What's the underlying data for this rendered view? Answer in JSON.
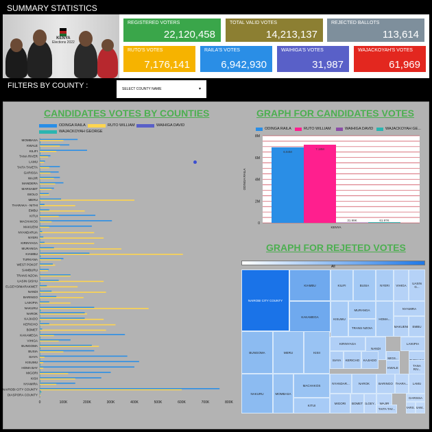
{
  "header": {
    "title": "SUMMARY STATISTICS"
  },
  "banner": {
    "logo_text": "KENYA",
    "logo_sub": "Elections 2022"
  },
  "kpis": [
    {
      "label": "REGISTERED VOTERS",
      "value": "22,120,458",
      "color": "#3aa64a"
    },
    {
      "label": "TOTAL VALID VOTES",
      "value": "14,213,137",
      "color": "#8c7f32"
    },
    {
      "label": "REJECTED BALLOTS",
      "value": "113,614",
      "color": "#7e8f9c"
    },
    {
      "label": "RUTO'S VOTES",
      "value": "7,176,141",
      "color": "#f6b300"
    },
    {
      "label": "RAILA'S VOTES",
      "value": "6,942,930",
      "color": "#2a8ee6"
    },
    {
      "label": "WAIHIGA'S VOTES",
      "value": "31,987",
      "color": "#5960c8"
    },
    {
      "label": "WAJACKOYAH'S VOTES",
      "value": "61,969",
      "color": "#e3271f"
    }
  ],
  "filters": {
    "label": "FILTERS BY COUNTY :",
    "select_value": "SELECT COUNTY NAME",
    "caret": "▾"
  },
  "county_chart": {
    "title": "CANDIDATES VOTES BY COUNTIES",
    "legend": [
      {
        "name": "ODINGA RAILA",
        "color": "#2a8ee6"
      },
      {
        "name": "RUTO WILLIAM",
        "color": "#ffd54f"
      },
      {
        "name": "WAIHIGA DAVID",
        "color": "#5960c8"
      },
      {
        "name": "WAJACKOYAH GEORGE",
        "color": "#2bb5b0"
      }
    ]
  },
  "bar_chart": {
    "title": "GRAPH FOR CANDIDATES VOTES",
    "legend": [
      {
        "name": "ODINGA RAILA",
        "color": "#2a8ee6"
      },
      {
        "name": "RUTO WILLIAM",
        "color": "#ff1f8e"
      },
      {
        "name": "WAIHIGA DAVID",
        "color": "#8b4da6"
      },
      {
        "name": "WAJACKOYAH GE...",
        "color": "#2bb5b0"
      }
    ],
    "ylabel": "ODINGA RAILA",
    "xlabel": "KENYA"
  },
  "treemap": {
    "title": "GRAPH FOR REJETED VOTES",
    "legend_label": "All",
    "cells": [
      "NAIROBI CITY COUNTY",
      "KIAMBU",
      "KILIFI",
      "BUSIA",
      "NYERI",
      "VIHIGA",
      "UASIN G...",
      "KAKAMEGA",
      "MURANGA",
      "NYAMIRA",
      "KISUMU",
      "HOMA...",
      "MAKUENI",
      "EMBU",
      "TRANS NZOIA",
      "BUNGOMA",
      "MERU",
      "KISII",
      "KIRINYAGA",
      "NANDI",
      "LAIKIPIA",
      "SIAYA",
      "KERICHO",
      "KAJIADO",
      "MIGS...",
      "KWALE",
      "TURKANA",
      "TANA RIV...",
      "MACHAKOS",
      "NYANDAR...",
      "NAROK",
      "BARINGO",
      "THARA...",
      "LAMU",
      "NAKURU",
      "MOMBASA",
      "KITUI",
      "MIGORI",
      "BOMET",
      "ELGEY...",
      "WAJIR",
      "TAITA TAV...",
      "GARISSA",
      "MARS...",
      "SAM..."
    ]
  },
  "chart_data": [
    {
      "type": "bar",
      "orientation": "horizontal",
      "title": "CANDIDATES VOTES BY COUNTIES",
      "categories": [
        "MOMBASA",
        "KWALE",
        "KILIFI",
        "TANA RIVER",
        "LAMU",
        "TAITA TAVETA",
        "GARISSA",
        "WAJIR",
        "MANDERA",
        "MARSABIT",
        "ISIOLO",
        "MERU",
        "THARAKA - NITHI",
        "EMBU",
        "KITUI",
        "MACHAKOS",
        "MAKUENI",
        "NYANDARUA",
        "NYERI",
        "KIRINYAGA",
        "MURANGA",
        "KIAMBU",
        "TURKANA",
        "WEST POKOT",
        "SAMBURU",
        "TRANS NZOIA",
        "UASIN GISHU",
        "ELGEYO/MARAKWET",
        "NANDI",
        "BARINGO",
        "LAIKIPIA",
        "NAKURU",
        "NAROK",
        "KAJIADO",
        "KERICHO",
        "BOMET",
        "KAKAMEGA",
        "VIHIGA",
        "BUNGOMA",
        "BUSIA",
        "SIAYA",
        "KISUMU",
        "HOMA BAY",
        "MIGORI",
        "KISII",
        "NYAMIRA",
        "NAIROBI CITY COUNTY",
        "DIASPORA COUNTY"
      ],
      "series": [
        {
          "name": "ODINGA RAILA",
          "values": [
            160,
            125,
            200,
            45,
            22,
            85,
            80,
            85,
            100,
            60,
            38,
            90,
            20,
            40,
            235,
            305,
            220,
            10,
            15,
            20,
            60,
            210,
            100,
            55,
            38,
            130,
            80,
            30,
            50,
            70,
            40,
            230,
            190,
            190,
            40,
            10,
            360,
            130,
            220,
            230,
            370,
            420,
            400,
            300,
            260,
            150,
            760,
            2
          ]
        },
        {
          "name": "RUTO WILLIAM",
          "values": [
            100,
            85,
            70,
            35,
            18,
            40,
            45,
            60,
            65,
            50,
            40,
            400,
            150,
            190,
            80,
            50,
            40,
            230,
            270,
            230,
            345,
            605,
            90,
            65,
            35,
            130,
            270,
            160,
            280,
            185,
            130,
            460,
            200,
            270,
            320,
            280,
            60,
            80,
            250,
            100,
            20,
            15,
            15,
            120,
            150,
            70,
            600,
            3
          ]
        },
        {
          "name": "WAIHIGA DAVID",
          "values": [
            2,
            1,
            1,
            0,
            0,
            1,
            0,
            0,
            0,
            0,
            0,
            1,
            0,
            1,
            1,
            1,
            1,
            1,
            1,
            1,
            1,
            2,
            0,
            0,
            0,
            1,
            1,
            0,
            1,
            0,
            0,
            2,
            1,
            1,
            1,
            1,
            1,
            0,
            1,
            0,
            0,
            0,
            0,
            0,
            1,
            1,
            3,
            0
          ]
        },
        {
          "name": "WAJACKOYAH GEORGE",
          "values": [
            3,
            2,
            3,
            1,
            0,
            1,
            1,
            1,
            1,
            1,
            0,
            2,
            1,
            1,
            2,
            2,
            2,
            1,
            1,
            1,
            2,
            4,
            1,
            1,
            0,
            2,
            2,
            1,
            2,
            1,
            1,
            4,
            2,
            3,
            2,
            2,
            3,
            1,
            3,
            2,
            2,
            3,
            2,
            2,
            3,
            1,
            7,
            0
          ]
        }
      ],
      "xlim": [
        0,
        800
      ],
      "xticks": [
        "0",
        "100K",
        "200K",
        "300K",
        "400K",
        "500K",
        "600K",
        "700K",
        "800K"
      ]
    },
    {
      "type": "bar",
      "title": "GRAPH FOR CANDIDATES VOTES",
      "categories": [
        "KENYA"
      ],
      "series": [
        {
          "name": "ODINGA RAILA",
          "values": [
            6.94
          ]
        },
        {
          "name": "RUTO WILLIAM",
          "values": [
            7.18
          ]
        },
        {
          "name": "WAIHIGA DAVID",
          "values": [
            0.032
          ]
        },
        {
          "name": "WAJACKOYAH GE...",
          "values": [
            0.062
          ]
        }
      ],
      "data_labels": [
        "6.94M",
        "7.18M",
        "31.99K",
        "61.97K"
      ],
      "ylabel": "ODINGA RAILA",
      "xlabel": "KENYA",
      "ylim": [
        0,
        8
      ],
      "yticks": [
        "0",
        "2M",
        "4M",
        "6M",
        "8M"
      ]
    }
  ]
}
